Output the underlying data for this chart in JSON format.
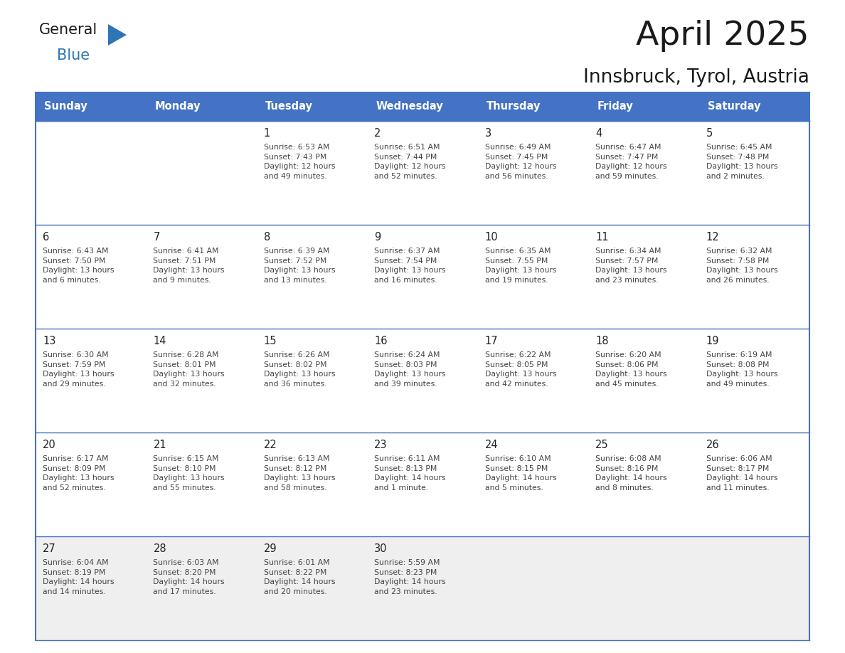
{
  "title": "April 2025",
  "subtitle": "Innsbruck, Tyrol, Austria",
  "days_of_week": [
    "Sunday",
    "Monday",
    "Tuesday",
    "Wednesday",
    "Thursday",
    "Friday",
    "Saturday"
  ],
  "header_bg": "#4472C4",
  "header_text": "#FFFFFF",
  "cell_bg_white": "#FFFFFF",
  "cell_bg_gray": "#F0F0F0",
  "border_color": "#4472C4",
  "text_color": "#444444",
  "day_num_color": "#222222",
  "general_color": "#1a1a1a",
  "blue_color": "#2E75B6",
  "weeks": [
    [
      {
        "day": null,
        "text": ""
      },
      {
        "day": null,
        "text": ""
      },
      {
        "day": 1,
        "text": "Sunrise: 6:53 AM\nSunset: 7:43 PM\nDaylight: 12 hours\nand 49 minutes."
      },
      {
        "day": 2,
        "text": "Sunrise: 6:51 AM\nSunset: 7:44 PM\nDaylight: 12 hours\nand 52 minutes."
      },
      {
        "day": 3,
        "text": "Sunrise: 6:49 AM\nSunset: 7:45 PM\nDaylight: 12 hours\nand 56 minutes."
      },
      {
        "day": 4,
        "text": "Sunrise: 6:47 AM\nSunset: 7:47 PM\nDaylight: 12 hours\nand 59 minutes."
      },
      {
        "day": 5,
        "text": "Sunrise: 6:45 AM\nSunset: 7:48 PM\nDaylight: 13 hours\nand 2 minutes."
      }
    ],
    [
      {
        "day": 6,
        "text": "Sunrise: 6:43 AM\nSunset: 7:50 PM\nDaylight: 13 hours\nand 6 minutes."
      },
      {
        "day": 7,
        "text": "Sunrise: 6:41 AM\nSunset: 7:51 PM\nDaylight: 13 hours\nand 9 minutes."
      },
      {
        "day": 8,
        "text": "Sunrise: 6:39 AM\nSunset: 7:52 PM\nDaylight: 13 hours\nand 13 minutes."
      },
      {
        "day": 9,
        "text": "Sunrise: 6:37 AM\nSunset: 7:54 PM\nDaylight: 13 hours\nand 16 minutes."
      },
      {
        "day": 10,
        "text": "Sunrise: 6:35 AM\nSunset: 7:55 PM\nDaylight: 13 hours\nand 19 minutes."
      },
      {
        "day": 11,
        "text": "Sunrise: 6:34 AM\nSunset: 7:57 PM\nDaylight: 13 hours\nand 23 minutes."
      },
      {
        "day": 12,
        "text": "Sunrise: 6:32 AM\nSunset: 7:58 PM\nDaylight: 13 hours\nand 26 minutes."
      }
    ],
    [
      {
        "day": 13,
        "text": "Sunrise: 6:30 AM\nSunset: 7:59 PM\nDaylight: 13 hours\nand 29 minutes."
      },
      {
        "day": 14,
        "text": "Sunrise: 6:28 AM\nSunset: 8:01 PM\nDaylight: 13 hours\nand 32 minutes."
      },
      {
        "day": 15,
        "text": "Sunrise: 6:26 AM\nSunset: 8:02 PM\nDaylight: 13 hours\nand 36 minutes."
      },
      {
        "day": 16,
        "text": "Sunrise: 6:24 AM\nSunset: 8:03 PM\nDaylight: 13 hours\nand 39 minutes."
      },
      {
        "day": 17,
        "text": "Sunrise: 6:22 AM\nSunset: 8:05 PM\nDaylight: 13 hours\nand 42 minutes."
      },
      {
        "day": 18,
        "text": "Sunrise: 6:20 AM\nSunset: 8:06 PM\nDaylight: 13 hours\nand 45 minutes."
      },
      {
        "day": 19,
        "text": "Sunrise: 6:19 AM\nSunset: 8:08 PM\nDaylight: 13 hours\nand 49 minutes."
      }
    ],
    [
      {
        "day": 20,
        "text": "Sunrise: 6:17 AM\nSunset: 8:09 PM\nDaylight: 13 hours\nand 52 minutes."
      },
      {
        "day": 21,
        "text": "Sunrise: 6:15 AM\nSunset: 8:10 PM\nDaylight: 13 hours\nand 55 minutes."
      },
      {
        "day": 22,
        "text": "Sunrise: 6:13 AM\nSunset: 8:12 PM\nDaylight: 13 hours\nand 58 minutes."
      },
      {
        "day": 23,
        "text": "Sunrise: 6:11 AM\nSunset: 8:13 PM\nDaylight: 14 hours\nand 1 minute."
      },
      {
        "day": 24,
        "text": "Sunrise: 6:10 AM\nSunset: 8:15 PM\nDaylight: 14 hours\nand 5 minutes."
      },
      {
        "day": 25,
        "text": "Sunrise: 6:08 AM\nSunset: 8:16 PM\nDaylight: 14 hours\nand 8 minutes."
      },
      {
        "day": 26,
        "text": "Sunrise: 6:06 AM\nSunset: 8:17 PM\nDaylight: 14 hours\nand 11 minutes."
      }
    ],
    [
      {
        "day": 27,
        "text": "Sunrise: 6:04 AM\nSunset: 8:19 PM\nDaylight: 14 hours\nand 14 minutes."
      },
      {
        "day": 28,
        "text": "Sunrise: 6:03 AM\nSunset: 8:20 PM\nDaylight: 14 hours\nand 17 minutes."
      },
      {
        "day": 29,
        "text": "Sunrise: 6:01 AM\nSunset: 8:22 PM\nDaylight: 14 hours\nand 20 minutes."
      },
      {
        "day": 30,
        "text": "Sunrise: 5:59 AM\nSunset: 8:23 PM\nDaylight: 14 hours\nand 23 minutes."
      },
      {
        "day": null,
        "text": ""
      },
      {
        "day": null,
        "text": ""
      },
      {
        "day": null,
        "text": ""
      }
    ]
  ],
  "row_bg_colors": [
    "#FFFFFF",
    "#FFFFFF",
    "#FFFFFF",
    "#FFFFFF",
    "#EFEFEF"
  ]
}
